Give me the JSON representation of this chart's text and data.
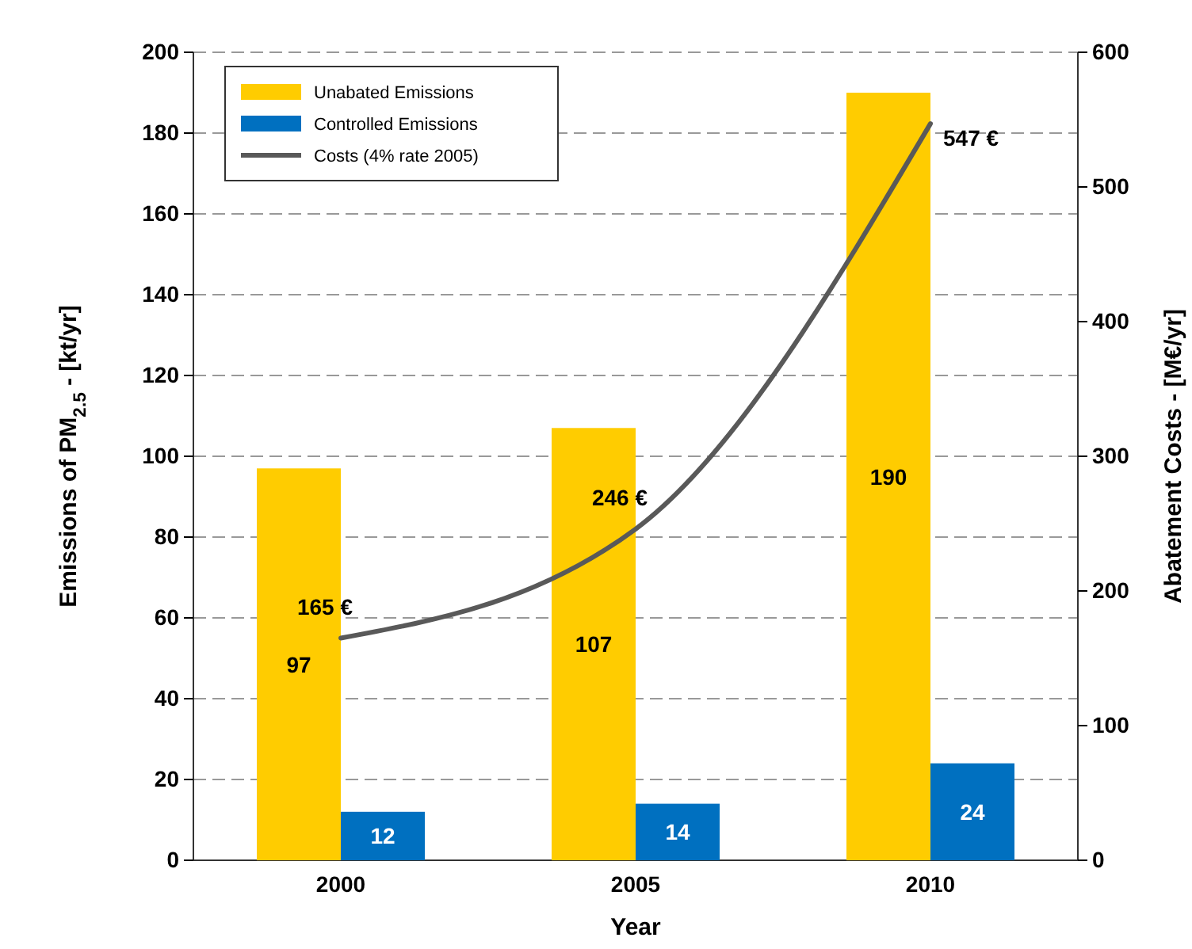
{
  "chart_data": {
    "type": "bar",
    "categories": [
      "2000",
      "2005",
      "2010"
    ],
    "xlabel": "Year",
    "ylabel": "Emissions of PM$_{2.5}$ - [kt/yr]",
    "y2label": "Abatement Costs - [M€/yr]",
    "ylim": [
      0,
      200
    ],
    "yticks": [
      0,
      20,
      40,
      60,
      80,
      100,
      120,
      140,
      160,
      180,
      200
    ],
    "y2lim": [
      0,
      600
    ],
    "y2ticks": [
      0,
      100,
      200,
      300,
      400,
      500,
      600
    ],
    "grid": "y",
    "legend": "top left",
    "series": [
      {
        "name": "Unabated Emissions",
        "color": "#ffcc00",
        "values": [
          97,
          107,
          190
        ],
        "value_labels": [
          "97",
          "107",
          "190"
        ]
      },
      {
        "name": "Controlled Emissions",
        "color": "#0070c0",
        "values": [
          12,
          14,
          24
        ],
        "value_labels": [
          "12",
          "14",
          "24"
        ]
      },
      {
        "name": "Costs (4% rate 2005)",
        "type": "line",
        "axis": "y2",
        "color": "#595959",
        "line_style": "solid",
        "marker": "none",
        "values": [
          165,
          246,
          547
        ],
        "value_labels": [
          "165 €",
          "246 €",
          "547 €"
        ]
      }
    ]
  }
}
